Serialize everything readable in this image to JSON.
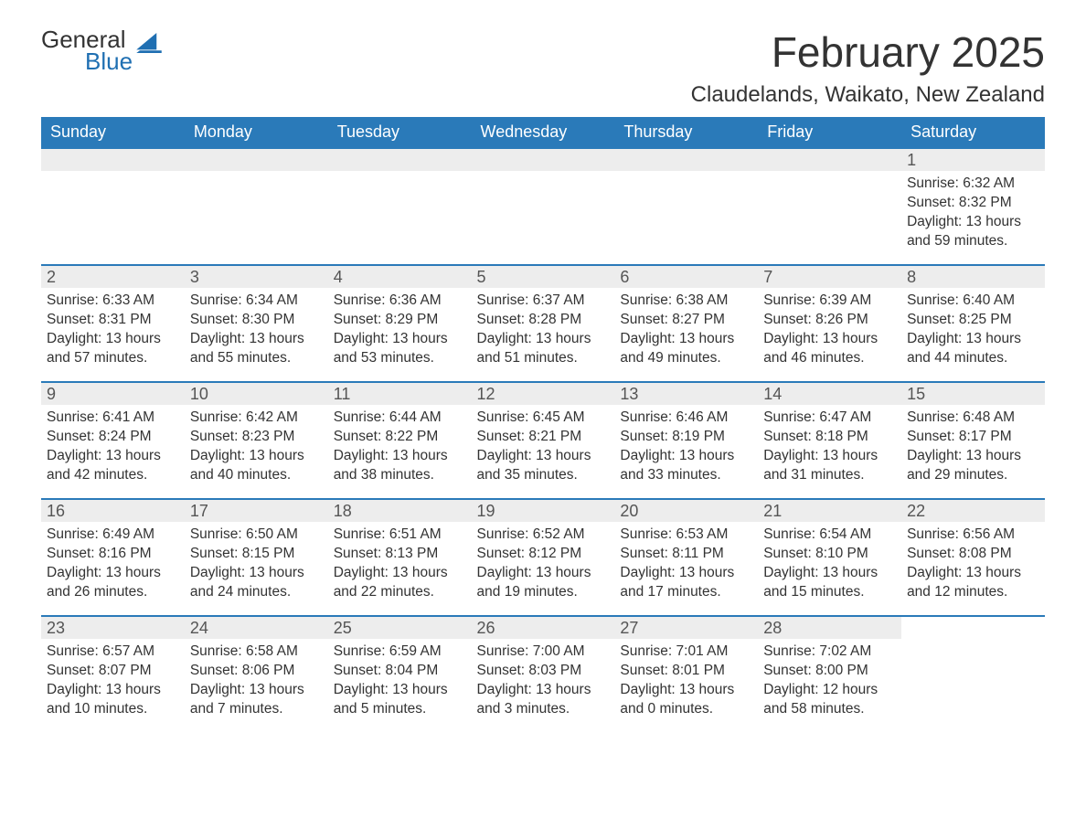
{
  "brand": {
    "word1": "General",
    "word2": "Blue",
    "sail_color": "#1f6fb2"
  },
  "title": "February 2025",
  "location": "Claudelands, Waikato, New Zealand",
  "header_bg": "#2a7ab9",
  "header_fg": "#ffffff",
  "daynum_bg": "#ededed",
  "border_color": "#2a7ab9",
  "weekdays": [
    "Sunday",
    "Monday",
    "Tuesday",
    "Wednesday",
    "Thursday",
    "Friday",
    "Saturday"
  ],
  "weeks": [
    [
      null,
      null,
      null,
      null,
      null,
      null,
      {
        "n": "1",
        "sr": "6:32 AM",
        "ss": "8:32 PM",
        "dl": "13 hours and 59 minutes."
      }
    ],
    [
      {
        "n": "2",
        "sr": "6:33 AM",
        "ss": "8:31 PM",
        "dl": "13 hours and 57 minutes."
      },
      {
        "n": "3",
        "sr": "6:34 AM",
        "ss": "8:30 PM",
        "dl": "13 hours and 55 minutes."
      },
      {
        "n": "4",
        "sr": "6:36 AM",
        "ss": "8:29 PM",
        "dl": "13 hours and 53 minutes."
      },
      {
        "n": "5",
        "sr": "6:37 AM",
        "ss": "8:28 PM",
        "dl": "13 hours and 51 minutes."
      },
      {
        "n": "6",
        "sr": "6:38 AM",
        "ss": "8:27 PM",
        "dl": "13 hours and 49 minutes."
      },
      {
        "n": "7",
        "sr": "6:39 AM",
        "ss": "8:26 PM",
        "dl": "13 hours and 46 minutes."
      },
      {
        "n": "8",
        "sr": "6:40 AM",
        "ss": "8:25 PM",
        "dl": "13 hours and 44 minutes."
      }
    ],
    [
      {
        "n": "9",
        "sr": "6:41 AM",
        "ss": "8:24 PM",
        "dl": "13 hours and 42 minutes."
      },
      {
        "n": "10",
        "sr": "6:42 AM",
        "ss": "8:23 PM",
        "dl": "13 hours and 40 minutes."
      },
      {
        "n": "11",
        "sr": "6:44 AM",
        "ss": "8:22 PM",
        "dl": "13 hours and 38 minutes."
      },
      {
        "n": "12",
        "sr": "6:45 AM",
        "ss": "8:21 PM",
        "dl": "13 hours and 35 minutes."
      },
      {
        "n": "13",
        "sr": "6:46 AM",
        "ss": "8:19 PM",
        "dl": "13 hours and 33 minutes."
      },
      {
        "n": "14",
        "sr": "6:47 AM",
        "ss": "8:18 PM",
        "dl": "13 hours and 31 minutes."
      },
      {
        "n": "15",
        "sr": "6:48 AM",
        "ss": "8:17 PM",
        "dl": "13 hours and 29 minutes."
      }
    ],
    [
      {
        "n": "16",
        "sr": "6:49 AM",
        "ss": "8:16 PM",
        "dl": "13 hours and 26 minutes."
      },
      {
        "n": "17",
        "sr": "6:50 AM",
        "ss": "8:15 PM",
        "dl": "13 hours and 24 minutes."
      },
      {
        "n": "18",
        "sr": "6:51 AM",
        "ss": "8:13 PM",
        "dl": "13 hours and 22 minutes."
      },
      {
        "n": "19",
        "sr": "6:52 AM",
        "ss": "8:12 PM",
        "dl": "13 hours and 19 minutes."
      },
      {
        "n": "20",
        "sr": "6:53 AM",
        "ss": "8:11 PM",
        "dl": "13 hours and 17 minutes."
      },
      {
        "n": "21",
        "sr": "6:54 AM",
        "ss": "8:10 PM",
        "dl": "13 hours and 15 minutes."
      },
      {
        "n": "22",
        "sr": "6:56 AM",
        "ss": "8:08 PM",
        "dl": "13 hours and 12 minutes."
      }
    ],
    [
      {
        "n": "23",
        "sr": "6:57 AM",
        "ss": "8:07 PM",
        "dl": "13 hours and 10 minutes."
      },
      {
        "n": "24",
        "sr": "6:58 AM",
        "ss": "8:06 PM",
        "dl": "13 hours and 7 minutes."
      },
      {
        "n": "25",
        "sr": "6:59 AM",
        "ss": "8:04 PM",
        "dl": "13 hours and 5 minutes."
      },
      {
        "n": "26",
        "sr": "7:00 AM",
        "ss": "8:03 PM",
        "dl": "13 hours and 3 minutes."
      },
      {
        "n": "27",
        "sr": "7:01 AM",
        "ss": "8:01 PM",
        "dl": "13 hours and 0 minutes."
      },
      {
        "n": "28",
        "sr": "7:02 AM",
        "ss": "8:00 PM",
        "dl": "12 hours and 58 minutes."
      },
      null
    ]
  ],
  "labels": {
    "sunrise": "Sunrise: ",
    "sunset": "Sunset: ",
    "daylight": "Daylight: "
  }
}
